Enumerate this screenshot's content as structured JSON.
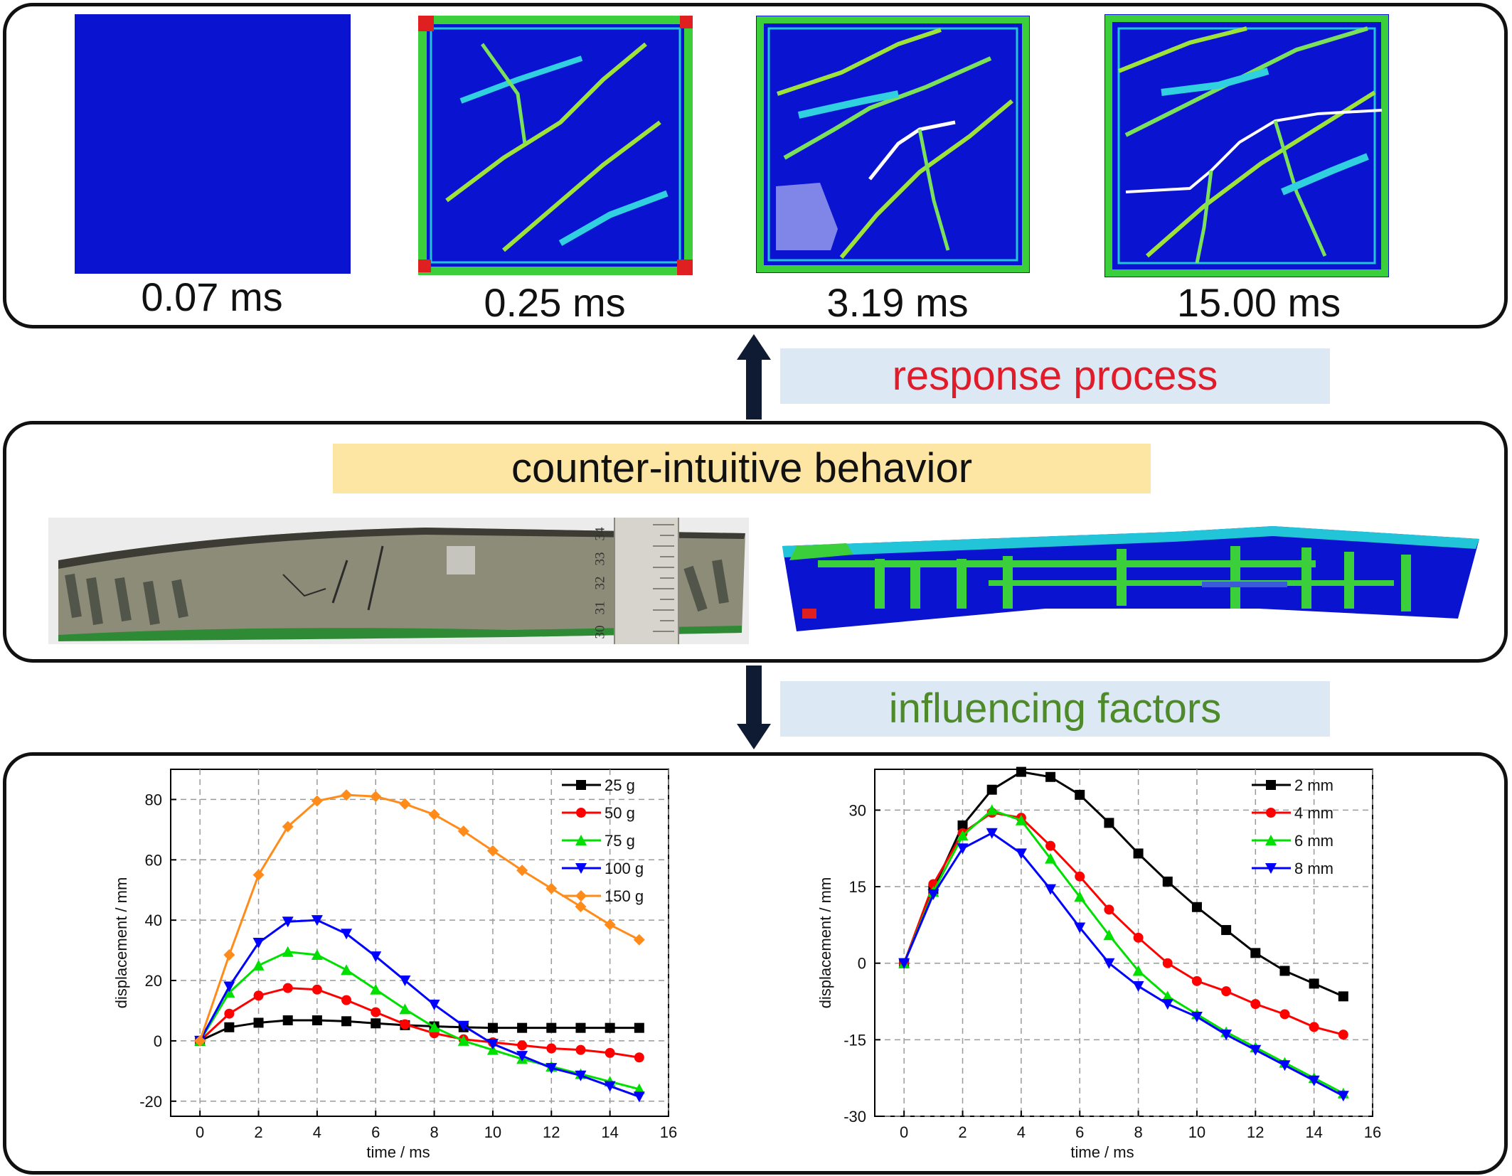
{
  "snapshots": [
    {
      "label": "0.07 ms"
    },
    {
      "label": "0.25 ms"
    },
    {
      "label": "3.19 ms"
    },
    {
      "label": "15.00 ms"
    }
  ],
  "banners": {
    "response": "response process",
    "behavior": "counter-intuitive behavior",
    "factors": "influencing factors"
  },
  "ruler_marks": [
    "30",
    "31",
    "32",
    "33",
    "34"
  ],
  "colors": {
    "response_text": "#e01b2a",
    "factors_text": "#4e8a2a",
    "response_bg": "#dce8f3",
    "behavior_bg": "#fde6a3",
    "snapshot_blue": "#0a14d0"
  },
  "chart_data": [
    {
      "type": "line",
      "xlabel": "time / ms",
      "ylabel": "displacement / mm",
      "xlim": [
        -1,
        16
      ],
      "ylim": [
        -25,
        90
      ],
      "xticks": [
        0,
        2,
        4,
        6,
        8,
        10,
        12,
        14,
        16
      ],
      "yticks": [
        -20,
        0,
        20,
        40,
        60,
        80
      ],
      "grid": true,
      "legend": "top-right",
      "x": [
        0,
        1,
        2,
        3,
        4,
        5,
        6,
        7,
        8,
        9,
        10,
        11,
        12,
        13,
        14,
        15
      ],
      "series": [
        {
          "name": "25 g",
          "color": "#000000",
          "marker": "square",
          "values": [
            0,
            4.5,
            6,
            6.8,
            6.8,
            6.5,
            5.8,
            5.2,
            4.8,
            4.5,
            4.3,
            4.3,
            4.3,
            4.3,
            4.3,
            4.3
          ]
        },
        {
          "name": "50 g",
          "color": "#ff0000",
          "marker": "circle",
          "values": [
            0,
            9,
            15,
            17.5,
            17,
            13.5,
            9.5,
            5.5,
            2.5,
            0.5,
            -0.5,
            -1.5,
            -2.5,
            -3,
            -4,
            -5.5
          ]
        },
        {
          "name": "75 g",
          "color": "#00e000",
          "marker": "triangle-up",
          "values": [
            0,
            16,
            25,
            29.5,
            28.5,
            23.5,
            17,
            10.5,
            4.5,
            0,
            -3,
            -6,
            -8.5,
            -11,
            -13.5,
            -16
          ]
        },
        {
          "name": "100 g",
          "color": "#0000ff",
          "marker": "triangle-down",
          "values": [
            0,
            18,
            32.5,
            39.5,
            40,
            35.5,
            28,
            20,
            12,
            5,
            -1,
            -5,
            -9,
            -11.5,
            -15,
            -18.5
          ]
        },
        {
          "name": "150 g",
          "color": "#ff8c1a",
          "marker": "diamond",
          "values": [
            0,
            28.5,
            55,
            71,
            79.5,
            81.5,
            81,
            78.5,
            75,
            69.5,
            63,
            56.5,
            50.5,
            44.5,
            38.5,
            33.5
          ]
        }
      ]
    },
    {
      "type": "line",
      "xlabel": "time / ms",
      "ylabel": "displacement / mm",
      "xlim": [
        -1,
        16
      ],
      "ylim": [
        -30,
        38
      ],
      "xticks": [
        0,
        2,
        4,
        6,
        8,
        10,
        12,
        14,
        16
      ],
      "yticks": [
        -30,
        -15,
        0,
        15,
        30
      ],
      "grid": true,
      "legend": "top-right",
      "x": [
        0,
        1,
        2,
        3,
        4,
        5,
        6,
        7,
        8,
        9,
        10,
        11,
        12,
        13,
        14,
        15
      ],
      "series": [
        {
          "name": "2 mm",
          "color": "#000000",
          "marker": "square",
          "values": [
            0,
            14.5,
            27,
            34,
            37.5,
            36.5,
            33,
            27.5,
            21.5,
            16,
            11,
            6.5,
            2,
            -1.5,
            -4,
            -6.5
          ]
        },
        {
          "name": "4 mm",
          "color": "#ff0000",
          "marker": "circle",
          "values": [
            0,
            15.5,
            25.5,
            29.5,
            28.5,
            23,
            17,
            10.5,
            5,
            0,
            -3.5,
            -5.5,
            -8,
            -10,
            -12.5,
            -14
          ]
        },
        {
          "name": "6 mm",
          "color": "#00e000",
          "marker": "triangle-up",
          "values": [
            0,
            14,
            25,
            30,
            28,
            20.5,
            13,
            5.5,
            -1.5,
            -6.5,
            -10,
            -13.5,
            -16.5,
            -19.5,
            -22.5,
            -25.5
          ]
        },
        {
          "name": "8 mm",
          "color": "#0000ff",
          "marker": "triangle-down",
          "values": [
            0,
            13.5,
            22.5,
            25.5,
            21.5,
            14.5,
            7,
            0,
            -4.5,
            -8,
            -10.5,
            -14,
            -17,
            -20,
            -23,
            -26
          ]
        }
      ]
    }
  ]
}
